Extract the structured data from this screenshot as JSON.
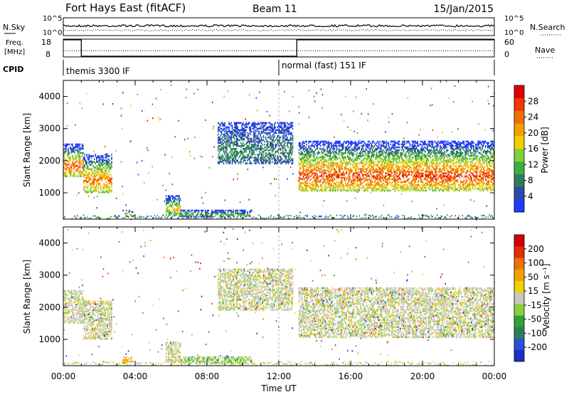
{
  "header": {
    "station": "Fort Hays East (fitACF)",
    "beam": "Beam 11",
    "date": "15/Jan/2015"
  },
  "noise_panel": {
    "left_label": "N.Sky",
    "right_label": "N.Search",
    "left_ticks": [
      "10^5",
      "10^0"
    ],
    "right_ticks": [
      "10^5",
      "10^0"
    ],
    "sky_level": 0.55,
    "search_level": 0.3
  },
  "freq_panel": {
    "left_label_1": "Freq.",
    "left_label_2": "[MHz]",
    "right_label": "Nave",
    "left_ticks": [
      "18",
      "8"
    ],
    "right_ticks": [
      "60",
      "0"
    ]
  },
  "cpid": {
    "label": "CPID",
    "modes": [
      {
        "name": "themis 3300 IF",
        "start_hour": 0,
        "end_hour": 12
      },
      {
        "name": "normal (fast) 151 IF",
        "start_hour": 12,
        "end_hour": 24
      }
    ]
  },
  "freq_series": [
    {
      "start_hour": 0,
      "end_hour": 1,
      "mhz": 18
    },
    {
      "start_hour": 1,
      "end_hour": 13,
      "mhz": 8
    },
    {
      "start_hour": 13,
      "end_hour": 24,
      "mhz": 18
    }
  ],
  "nave_level": 0.35,
  "chart_data": [
    {
      "type": "heatmap",
      "ylabel": "Slant Range [km]",
      "xlabel": "Time UT",
      "x_ticks": [
        "00:00",
        "04:00",
        "08:00",
        "12:00",
        "16:00",
        "20:00",
        "00:00"
      ],
      "x_range_hours": [
        0,
        24
      ],
      "y_ticks": [
        1000,
        2000,
        3000,
        4000
      ],
      "ylim": [
        180,
        4500
      ],
      "colorbar": {
        "label": "Power [dB]",
        "ticks": [
          "4",
          "8",
          "12",
          "16",
          "20",
          "24",
          "28"
        ],
        "colors": [
          "#1f3cff",
          "#2a4ca8",
          "#2e7d5a",
          "#3fae3f",
          "#7fd23a",
          "#f0d000",
          "#f5a000",
          "#f07000",
          "#f03800",
          "#e00000"
        ]
      },
      "echo_regions": [
        {
          "start_hour": 0.0,
          "end_hour": 1.1,
          "range_low": 1500,
          "range_high": 2500,
          "level": 0.85
        },
        {
          "start_hour": 1.1,
          "end_hour": 2.7,
          "range_low": 1000,
          "range_high": 2200,
          "level": 0.8
        },
        {
          "start_hour": 3.3,
          "end_hour": 3.9,
          "range_low": 250,
          "range_high": 450,
          "level": 0.55
        },
        {
          "start_hour": 5.7,
          "end_hour": 6.5,
          "range_low": 300,
          "range_high": 900,
          "level": 0.6
        },
        {
          "start_hour": 6.5,
          "end_hour": 10.5,
          "range_low": 250,
          "range_high": 450,
          "level": 0.35
        },
        {
          "start_hour": 8.6,
          "end_hour": 12.8,
          "range_low": 1900,
          "range_high": 3200,
          "level": 0.25
        },
        {
          "start_hour": 13.1,
          "end_hour": 24.0,
          "range_low": 1050,
          "range_high": 2600,
          "level": 0.9
        }
      ]
    },
    {
      "type": "heatmap",
      "ylabel": "Slant Range [km]",
      "xlabel": "Time UT",
      "x_ticks": [
        "00:00",
        "04:00",
        "08:00",
        "12:00",
        "16:00",
        "20:00",
        "00:00"
      ],
      "x_range_hours": [
        0,
        24
      ],
      "y_ticks": [
        1000,
        2000,
        3000,
        4000
      ],
      "ylim": [
        180,
        4500
      ],
      "colorbar": {
        "label": "Velocity [m s⁻¹]",
        "ticks": [
          "200",
          "100",
          "50",
          "15",
          "-15",
          "-50",
          "-100",
          "-200"
        ],
        "colors": [
          "#1a30c8",
          "#2a50d8",
          "#2e7d5a",
          "#33a033",
          "#88d040",
          "#c8c8c0",
          "#f0d000",
          "#f5a000",
          "#f07000",
          "#e03000",
          "#d00000"
        ]
      },
      "echo_regions": [
        {
          "start_hour": 0.0,
          "end_hour": 1.1,
          "range_low": 1500,
          "range_high": 2500,
          "level": 0.5
        },
        {
          "start_hour": 1.1,
          "end_hour": 2.7,
          "range_low": 1000,
          "range_high": 2200,
          "level": 0.5
        },
        {
          "start_hour": 3.3,
          "end_hour": 3.9,
          "range_low": 250,
          "range_high": 450,
          "level": 0.7
        },
        {
          "start_hour": 5.7,
          "end_hour": 6.5,
          "range_low": 300,
          "range_high": 900,
          "level": 0.5
        },
        {
          "start_hour": 6.5,
          "end_hour": 10.5,
          "range_low": 250,
          "range_high": 450,
          "level": 0.4
        },
        {
          "start_hour": 8.6,
          "end_hour": 12.8,
          "range_low": 1900,
          "range_high": 3200,
          "level": 0.5
        },
        {
          "start_hour": 13.1,
          "end_hour": 24.0,
          "range_low": 1050,
          "range_high": 2600,
          "level": 0.5
        }
      ]
    }
  ]
}
